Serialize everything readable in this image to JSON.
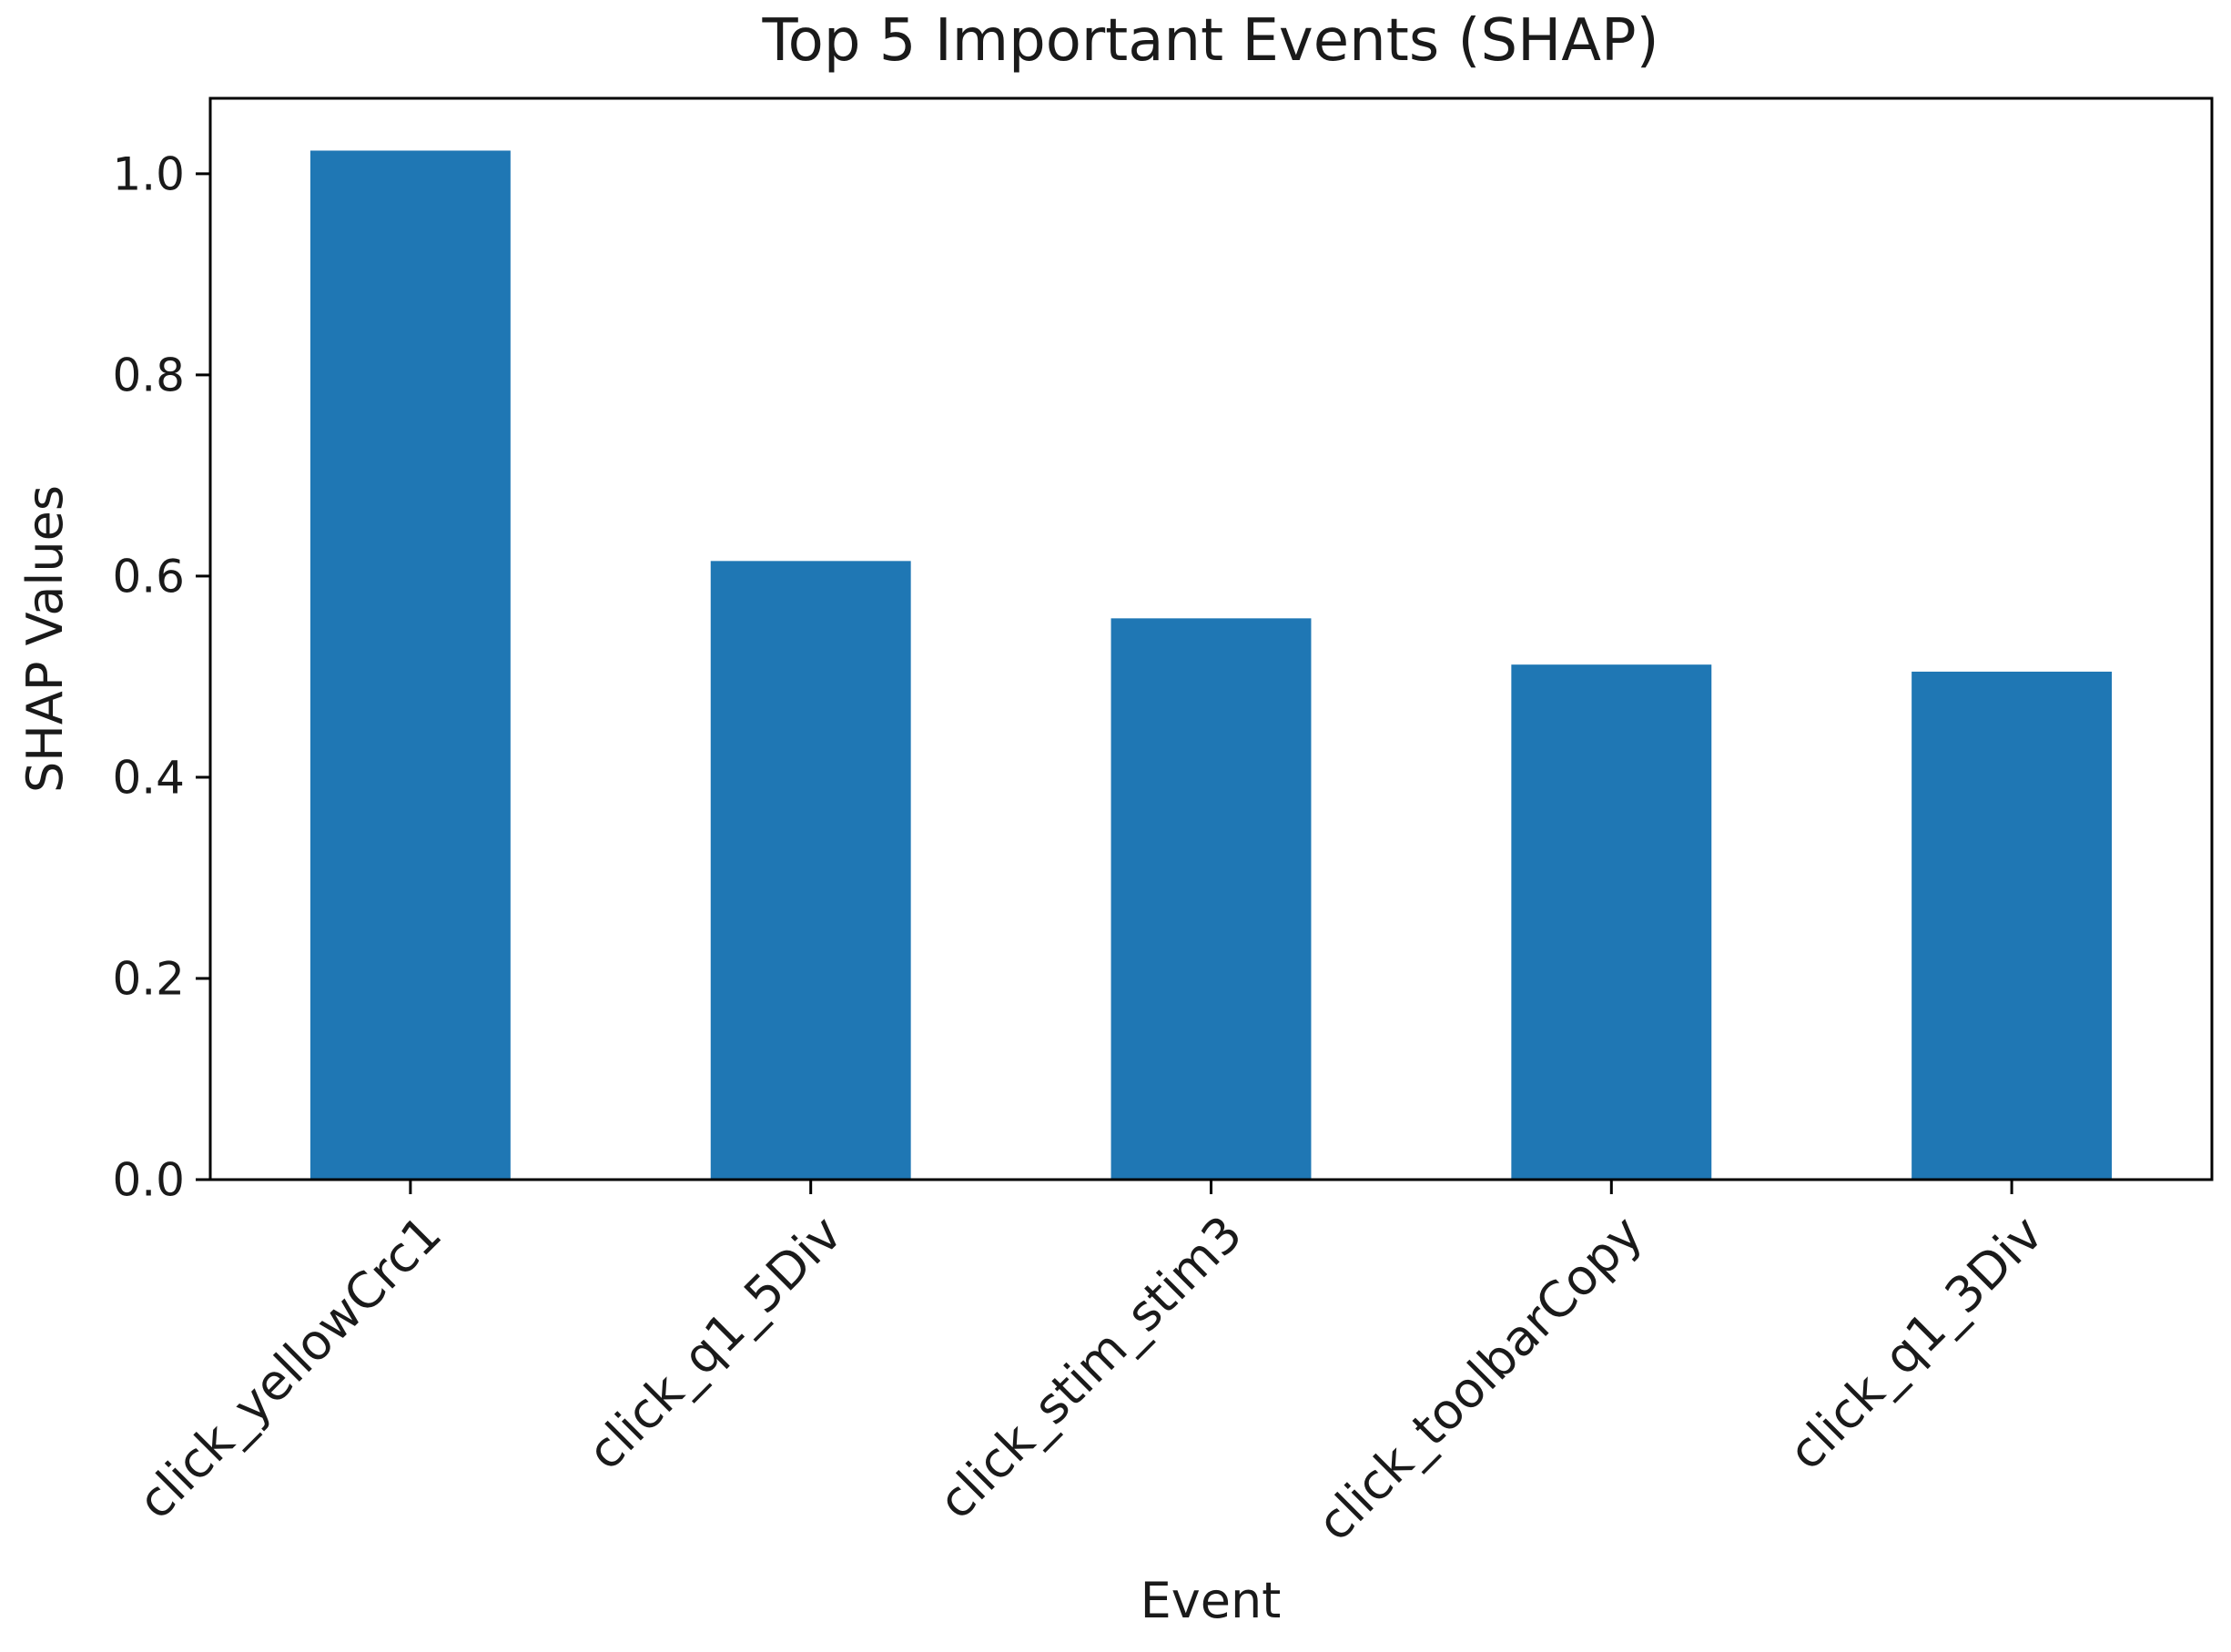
{
  "chart_data": {
    "type": "bar",
    "title": "Top 5 Important Events (SHAP)",
    "xlabel": "Event",
    "ylabel": "SHAP Values",
    "categories": [
      "click_yellowCrc1",
      "click_q1_5Div",
      "click_stim_stim3",
      "click_toolbarCopy",
      "click_q1_3Div"
    ],
    "values": [
      1.023,
      0.615,
      0.558,
      0.512,
      0.505
    ],
    "ylim": [
      0,
      1.075
    ],
    "yticks": [
      0.0,
      0.2,
      0.4,
      0.6,
      0.8,
      1.0
    ],
    "ytick_labels": [
      "0.0",
      "0.2",
      "0.4",
      "0.6",
      "0.8",
      "1.0"
    ],
    "bar_color": "#1f77b4",
    "grid": false,
    "legend": "none"
  }
}
